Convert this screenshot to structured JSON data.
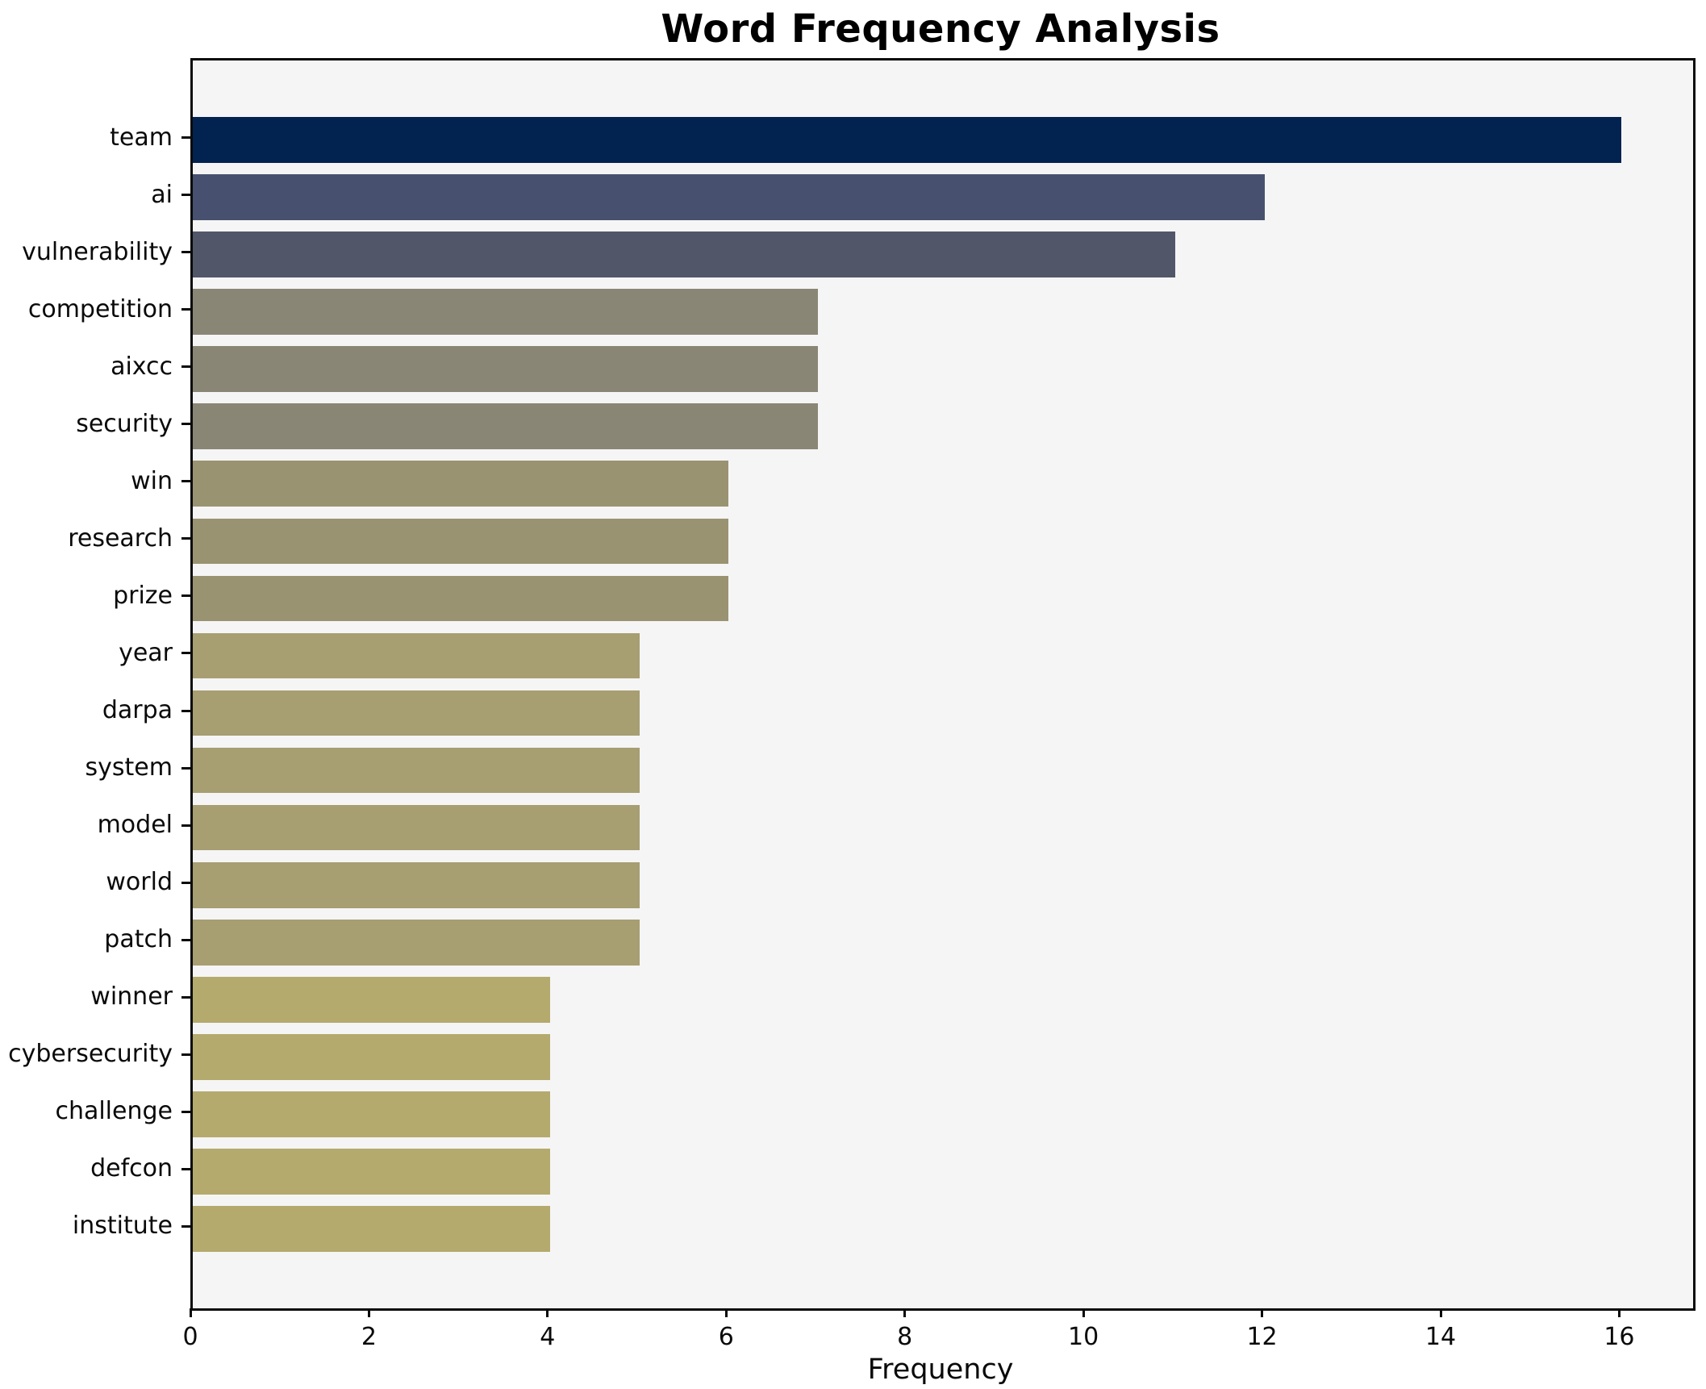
{
  "title": "Word Frequency Analysis",
  "chart_data": {
    "type": "bar",
    "orientation": "horizontal",
    "title": "Word Frequency Analysis",
    "xlabel": "Frequency",
    "ylabel": "",
    "categories": [
      "team",
      "ai",
      "vulnerability",
      "competition",
      "aixcc",
      "security",
      "win",
      "research",
      "prize",
      "year",
      "darpa",
      "system",
      "model",
      "world",
      "patch",
      "winner",
      "cybersecurity",
      "challenge",
      "defcon",
      "institute"
    ],
    "values": [
      16,
      12,
      11,
      7,
      7,
      7,
      6,
      6,
      6,
      5,
      5,
      5,
      5,
      5,
      5,
      4,
      4,
      4,
      4,
      4
    ],
    "bar_colors": [
      "#022350",
      "#47516f",
      "#515669",
      "#8a8675",
      "#8a8675",
      "#8a8675",
      "#9a9372",
      "#9a9372",
      "#9a9372",
      "#a79e72",
      "#a79e72",
      "#a79e72",
      "#a79e72",
      "#a79e72",
      "#a79e72",
      "#b5aa6e",
      "#b5aa6e",
      "#b5aa6e",
      "#b5aa6e",
      "#b5aa6e"
    ],
    "colormap": "cividis-reversed-by-value",
    "xlim": [
      0,
      16.8
    ],
    "xticks": [
      0,
      2,
      4,
      6,
      8,
      10,
      12,
      14,
      16
    ],
    "grid": false,
    "legend": false,
    "plot_background": "#f5f5f6",
    "figure_background": "#ffffff",
    "spine_color": "#0a0a0a",
    "text_color": "#000000"
  }
}
